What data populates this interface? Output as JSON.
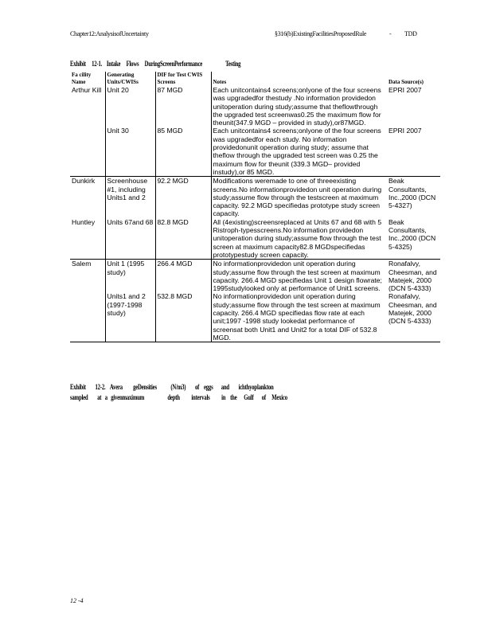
{
  "header": {
    "left": "Chapter12:AnalysisofUncertainty",
    "right": "§316(b)ExistingFacilitiesProposedRule",
    "dash": "-",
    "tag": "TDD"
  },
  "exhibit1": {
    "title": "Exhibit     12-1.    Intake     Flows     DuringScreenPerformance                    Testing"
  },
  "table": {
    "headers": [
      "Fa cility Name",
      "Generating Units/CWISs",
      "DIF for Test CWIS Screens",
      "Notes",
      "Data Source(s)"
    ],
    "rows": [
      {
        "facility": "Arthur Kill",
        "unit": "Unit 20",
        "dif": "87 MGD",
        "notes": "Each unitcontains4 screens;onlyone of the four screens was upgradedfor thestudy .No information providedon unitoperation during study;assume that theflowthrough the upgraded test screenwas0.25 the maximum flow for theunit(347.9 MGD – provided in study),or87MGD.",
        "source": "EPRI 2007"
      },
      {
        "facility": "",
        "unit": "Unit 30",
        "dif": "85 MGD",
        "notes": "Each unitcontains4 screens;onlyone of the four screens was upgradedfor each study. No information providedonunit operation during study; assume that theflow through the upgraded test screen was 0.25 the maximum flow for theunit (339.3 MGD– provided instudy),or 85 MGD.",
        "source": "EPRI 2007"
      },
      {
        "facility": "Dunkirk",
        "unit": "Screenhouse #1, including Units1 and 2",
        "dif": "92.2 MGD",
        "notes": "Modifications weremade to one of threeexisting screens.No informationprovidedon unit operation during study;assume flow through the testscreen at maximum capacity. 92.2 MGD specifiedas prototype study screen capacity.",
        "source": "Beak Consultants, Inc.,2000 (DCN 5-4327)"
      },
      {
        "facility": "Huntley",
        "unit": "Units 67and 68",
        "dif": "82.8 MGD",
        "notes": "All (4existing)screensreplaced at Units 67 and 68 with 5 Ristroph-typesscreens.No information providedon unitoperation during study;assume flow through the test screen at maximum capacity82.8 MGDspecifiedas prototypestudy screen capacity.",
        "source": "Beak Consultants, Inc.,2000 (DCN 5-4325)"
      },
      {
        "facility": "Salem",
        "unit": "Unit 1 (1995 study)",
        "dif": "266.4 MGD",
        "notes": "No informationprovidedon unit operation during study;assume flow through the test screen at maximum capacity. 266.4 MGD specifiedas Unit 1 design flowrate; 1995studylooked only at performance of Unit1 screens.",
        "source": "Ronafalvy, Cheesman, and Matejek, 2000 (DCN 5-4333)"
      },
      {
        "facility": "",
        "unit": "Units1 and 2 (1997-1998 study)",
        "dif": "532.8 MGD",
        "notes": "No informationprovidedon unit operation during study;assume flow through the test screen at maximum capacity. 266.4 MGD specifiedas flow rate at each unit;1997 -1998 study lookedat performance of screensat both Unit1 and Unit2 for a total DIF of 532.8 MGD.",
        "source": "Ronafalvy, Cheesman, and Matejek, 2000 (DCN 5-4333)"
      }
    ]
  },
  "exhibit2": {
    "line1": "Exhibit        12-2.    Avera         geDensities            (N/m3)        of    eggs       and        ichthyoplankton",
    "line2": "sampled        at   a   givenmaximum                    depth          intervals          in    the      Gulf       of     Mexico"
  },
  "footer": {
    "page": "12 -4"
  }
}
